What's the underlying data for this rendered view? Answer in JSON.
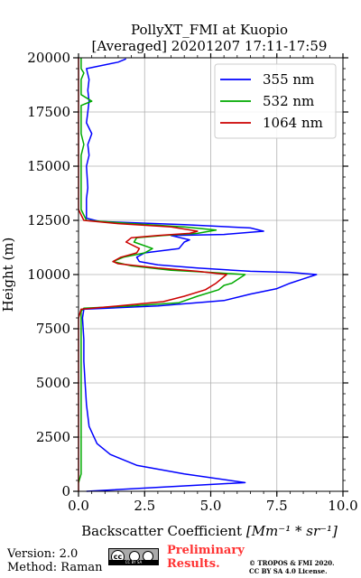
{
  "chart_data": {
    "type": "line",
    "title": "PollyXT_FMI at Kuopio",
    "subtitle": "[Averaged] 20201207 17:11-17:59",
    "xlabel_prefix": "Backscatter Coefficient ",
    "xlabel_math": "[Mm⁻¹ * sr⁻¹]",
    "ylabel": "Height (m)",
    "xlim": [
      0,
      10
    ],
    "ylim": [
      0,
      20000
    ],
    "xticks": [
      0,
      2.5,
      5,
      7.5,
      10
    ],
    "xtick_labels": [
      "0.0",
      "2.5",
      "5.0",
      "7.5",
      "10.0"
    ],
    "yticks": [
      0,
      2500,
      5000,
      7500,
      10000,
      12500,
      15000,
      17500,
      20000
    ],
    "ytick_labels": [
      "0",
      "2500",
      "5000",
      "7500",
      "10000",
      "12500",
      "15000",
      "17500",
      "20000"
    ],
    "grid": true,
    "legend_position": "top-right",
    "series": [
      {
        "name": "355 nm",
        "color": "#0000ff",
        "points": [
          [
            0.3,
            0
          ],
          [
            6.3,
            400
          ],
          [
            4.0,
            800
          ],
          [
            2.2,
            1200
          ],
          [
            1.2,
            1700
          ],
          [
            0.7,
            2200
          ],
          [
            0.4,
            3000
          ],
          [
            0.3,
            4000
          ],
          [
            0.25,
            5000
          ],
          [
            0.2,
            6000
          ],
          [
            0.2,
            7000
          ],
          [
            0.15,
            8000
          ],
          [
            0.2,
            8400
          ],
          [
            3.0,
            8550
          ],
          [
            5.5,
            8800
          ],
          [
            6.5,
            9100
          ],
          [
            7.5,
            9350
          ],
          [
            8.0,
            9600
          ],
          [
            8.5,
            9800
          ],
          [
            9.0,
            10000
          ],
          [
            8.0,
            10100
          ],
          [
            6.5,
            10150
          ],
          [
            4.5,
            10300
          ],
          [
            3.0,
            10450
          ],
          [
            2.3,
            10600
          ],
          [
            2.2,
            10800
          ],
          [
            2.5,
            11000
          ],
          [
            3.8,
            11200
          ],
          [
            4.0,
            11500
          ],
          [
            4.2,
            11600
          ],
          [
            3.5,
            11800
          ],
          [
            5.5,
            11850
          ],
          [
            7.0,
            12000
          ],
          [
            6.5,
            12150
          ],
          [
            4.0,
            12300
          ],
          [
            0.8,
            12450
          ],
          [
            0.3,
            12600
          ],
          [
            0.3,
            13500
          ],
          [
            0.35,
            14000
          ],
          [
            0.3,
            15000
          ],
          [
            0.4,
            15500
          ],
          [
            0.35,
            16000
          ],
          [
            0.5,
            16500
          ],
          [
            0.3,
            17000
          ],
          [
            0.35,
            17500
          ],
          [
            0.4,
            18000
          ],
          [
            0.35,
            18500
          ],
          [
            0.4,
            19000
          ],
          [
            0.3,
            19500
          ],
          [
            1.5,
            19800
          ],
          [
            1.8,
            19950
          ]
        ]
      },
      {
        "name": "532 nm",
        "color": "#00aa00",
        "points": [
          [
            0.0,
            400
          ],
          [
            0.1,
            800
          ],
          [
            0.1,
            2000
          ],
          [
            0.1,
            5000
          ],
          [
            0.1,
            7000
          ],
          [
            0.1,
            8300
          ],
          [
            0.2,
            8450
          ],
          [
            2.0,
            8550
          ],
          [
            3.8,
            8700
          ],
          [
            4.5,
            9000
          ],
          [
            5.3,
            9300
          ],
          [
            5.5,
            9500
          ],
          [
            5.8,
            9600
          ],
          [
            6.3,
            10000
          ],
          [
            5.0,
            10100
          ],
          [
            3.5,
            10200
          ],
          [
            2.0,
            10400
          ],
          [
            1.3,
            10600
          ],
          [
            1.7,
            10800
          ],
          [
            2.5,
            11000
          ],
          [
            2.8,
            11200
          ],
          [
            2.1,
            11500
          ],
          [
            2.2,
            11700
          ],
          [
            3.2,
            11800
          ],
          [
            4.5,
            11900
          ],
          [
            5.2,
            12050
          ],
          [
            4.0,
            12200
          ],
          [
            2.0,
            12350
          ],
          [
            0.3,
            12500
          ],
          [
            0.1,
            13000
          ],
          [
            0.1,
            15500
          ],
          [
            0.2,
            16000
          ],
          [
            0.1,
            16500
          ],
          [
            0.1,
            17800
          ],
          [
            0.5,
            18000
          ],
          [
            0.1,
            18300
          ],
          [
            0.1,
            19000
          ],
          [
            0.2,
            19300
          ],
          [
            0.1,
            19500
          ],
          [
            0.1,
            20000
          ]
        ]
      },
      {
        "name": "1064 nm",
        "color": "#cc0000",
        "points": [
          [
            0.0,
            0
          ],
          [
            0.0,
            400
          ],
          [
            0.0,
            800
          ],
          [
            0.0,
            2000
          ],
          [
            0.0,
            5000
          ],
          [
            0.0,
            8000
          ],
          [
            0.1,
            8400
          ],
          [
            1.5,
            8550
          ],
          [
            3.2,
            8750
          ],
          [
            4.0,
            9000
          ],
          [
            4.8,
            9300
          ],
          [
            5.2,
            9600
          ],
          [
            5.6,
            10000
          ],
          [
            4.5,
            10150
          ],
          [
            3.0,
            10300
          ],
          [
            1.5,
            10500
          ],
          [
            1.3,
            10600
          ],
          [
            1.6,
            10800
          ],
          [
            2.2,
            11000
          ],
          [
            2.3,
            11200
          ],
          [
            1.8,
            11500
          ],
          [
            2.0,
            11700
          ],
          [
            3.0,
            11800
          ],
          [
            4.2,
            11900
          ],
          [
            4.5,
            12000
          ],
          [
            3.5,
            12200
          ],
          [
            1.5,
            12350
          ],
          [
            0.2,
            12500
          ],
          [
            0.0,
            13000
          ],
          [
            0.0,
            15000
          ],
          [
            0.0,
            17000
          ],
          [
            0.0,
            19000
          ],
          [
            0.0,
            20000
          ]
        ]
      }
    ]
  },
  "footer": {
    "version": "Version: 2.0",
    "method": "Method: Raman",
    "license_badge": "CC BY SA",
    "preliminary_line1": "Preliminary",
    "preliminary_line2": "Results.",
    "copyright_line1": "© TROPOS & FMI 2020.",
    "copyright_line2": "CC BY SA 4.0 License."
  }
}
